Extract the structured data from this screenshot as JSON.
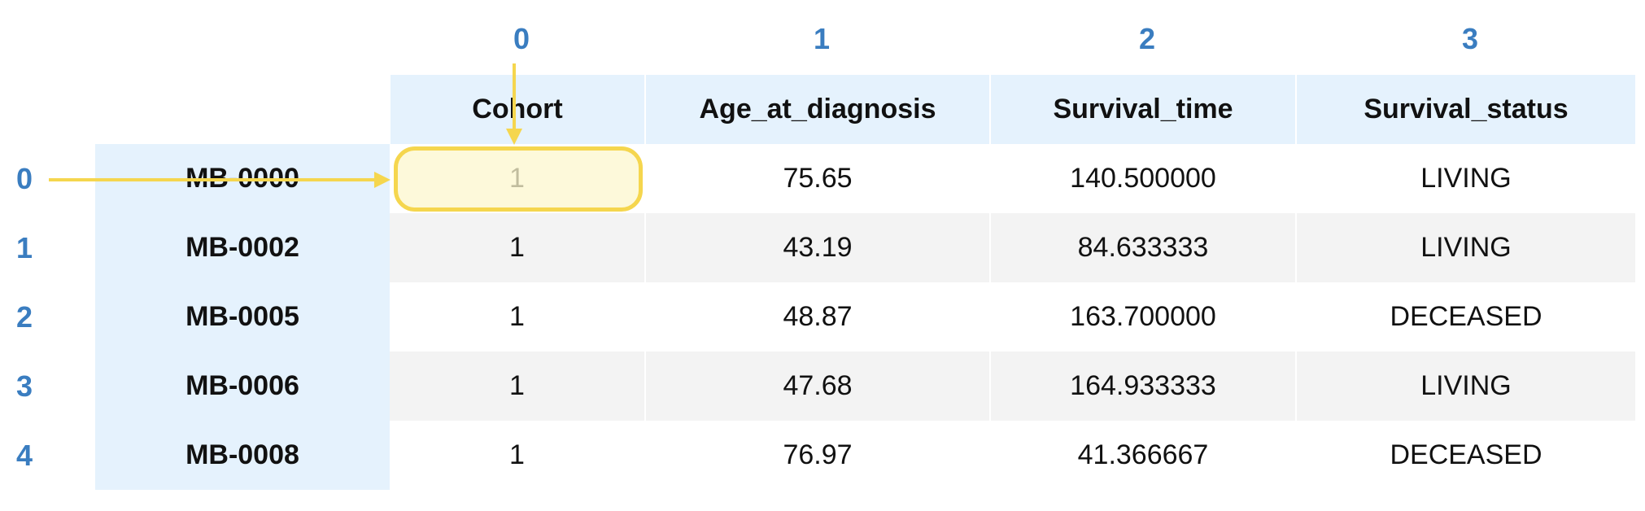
{
  "positional_columns": [
    "0",
    "1",
    "2",
    "3"
  ],
  "positional_rows": [
    "0",
    "1",
    "2",
    "3",
    "4"
  ],
  "columns": [
    "Cohort",
    "Age_at_diagnosis",
    "Survival_time",
    "Survival_status"
  ],
  "rows": [
    {
      "index": "MB-0000",
      "cells": [
        "1",
        "75.65",
        "140.500000",
        "LIVING"
      ]
    },
    {
      "index": "MB-0002",
      "cells": [
        "1",
        "43.19",
        "84.633333",
        "LIVING"
      ]
    },
    {
      "index": "MB-0005",
      "cells": [
        "1",
        "48.87",
        "163.700000",
        "DECEASED"
      ]
    },
    {
      "index": "MB-0006",
      "cells": [
        "1",
        "47.68",
        "164.933333",
        "LIVING"
      ]
    },
    {
      "index": "MB-0008",
      "cells": [
        "1",
        "76.97",
        "41.366667",
        "DECEASED"
      ]
    }
  ],
  "highlight": {
    "row": 0,
    "column": 0
  },
  "colors": {
    "positional_label": "#3a7dc0",
    "header_background": "#e5f2fd",
    "stripe_background": "#f3f3f3",
    "highlight_border": "#f5d64e",
    "highlight_fill": "#fcf7cd",
    "arrow": "#f5d64e"
  }
}
